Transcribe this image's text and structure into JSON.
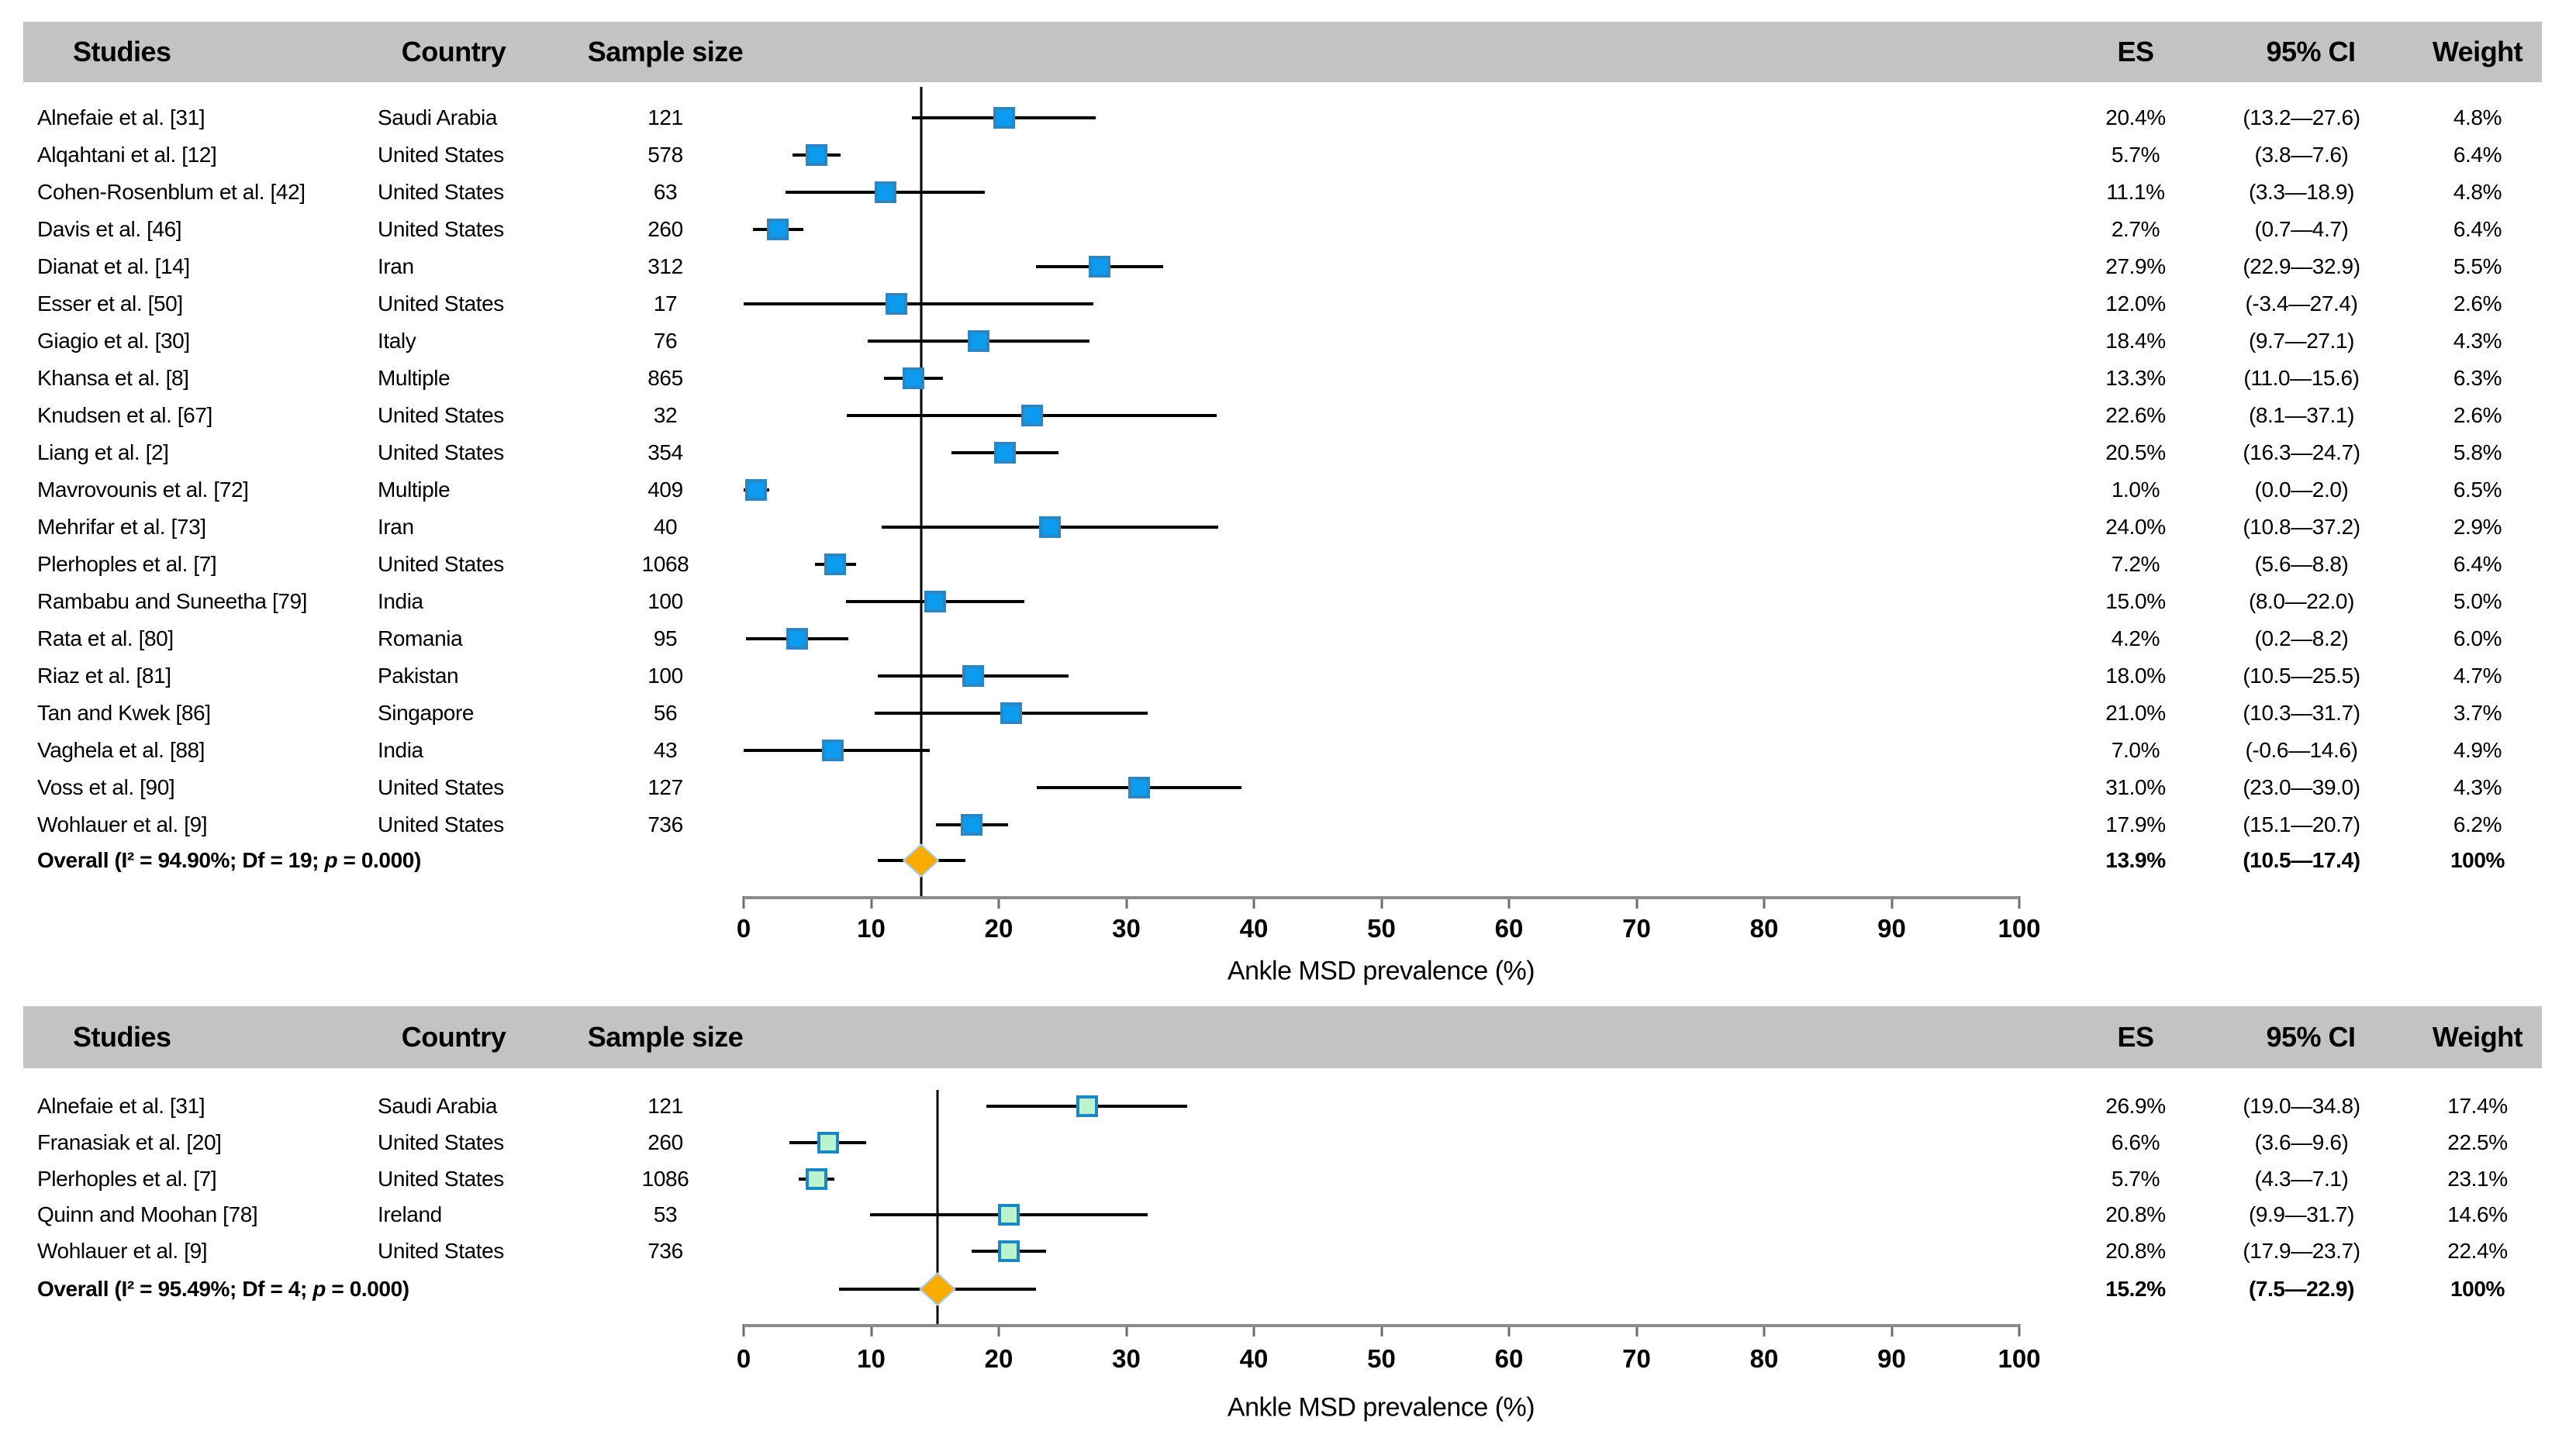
{
  "figure_name": "ankle-msd-prevalence-forest-plots",
  "columns": {
    "studies": "Studies",
    "country": "Country",
    "sample_size": "Sample size",
    "es": "ES",
    "ci": "95% CI",
    "weight": "Weight"
  },
  "colors": {
    "header_bg": "#c3c3c3",
    "panel1_marker_fill": "#0d9bf0",
    "panel1_marker_border": "#2e86c1",
    "panel2_marker_fill": "#b9f4cf",
    "panel2_marker_border": "#1e86c0",
    "diamond_fill": "#f8ab00",
    "diamond_border": "#aecbdd",
    "ci_line": "#000000",
    "axis_line": "#8c8c8c",
    "text": "#000000"
  },
  "chart_data": [
    {
      "type": "forest",
      "xlabel": "Ankle MSD prevalence (%)",
      "xlim": [
        0,
        100
      ],
      "ticks": [
        0,
        10,
        20,
        30,
        40,
        50,
        60,
        70,
        80,
        90,
        100
      ],
      "legend_position": "none",
      "grid": false,
      "marker_fill": "#0d9bf0",
      "marker_border": "#2e86c1",
      "marker_border_px": 4,
      "rows": [
        {
          "study": "Alnefaie et al. [31]",
          "country": "Saudi Arabia",
          "n": "121",
          "es": 20.4,
          "lo": 13.2,
          "hi": 27.6,
          "es_text": "20.4%",
          "ci_text": "(13.2—27.6)",
          "weight_text": "4.8%"
        },
        {
          "study": "Alqahtani et al. [12]",
          "country": "United States",
          "n": "578",
          "es": 5.7,
          "lo": 3.8,
          "hi": 7.6,
          "es_text": "5.7%",
          "ci_text": "(3.8—7.6)",
          "weight_text": "6.4%"
        },
        {
          "study": "Cohen-Rosenblum et al. [42]",
          "country": "United States",
          "n": "63",
          "es": 11.1,
          "lo": 3.3,
          "hi": 18.9,
          "es_text": "11.1%",
          "ci_text": "(3.3—18.9)",
          "weight_text": "4.8%"
        },
        {
          "study": "Davis et al. [46]",
          "country": "United States",
          "n": "260",
          "es": 2.7,
          "lo": 0.7,
          "hi": 4.7,
          "es_text": "2.7%",
          "ci_text": "(0.7—4.7)",
          "weight_text": "6.4%"
        },
        {
          "study": "Dianat et al. [14]",
          "country": "Iran",
          "n": "312",
          "es": 27.9,
          "lo": 22.9,
          "hi": 32.9,
          "es_text": "27.9%",
          "ci_text": "(22.9—32.9)",
          "weight_text": "5.5%"
        },
        {
          "study": "Esser et al. [50]",
          "country": "United States",
          "n": "17",
          "es": 12.0,
          "lo": -3.4,
          "hi": 27.4,
          "es_text": "12.0%",
          "ci_text": "(-3.4—27.4)",
          "weight_text": "2.6%"
        },
        {
          "study": "Giagio et al. [30]",
          "country": "Italy",
          "n": "76",
          "es": 18.4,
          "lo": 9.7,
          "hi": 27.1,
          "es_text": "18.4%",
          "ci_text": "(9.7—27.1)",
          "weight_text": "4.3%"
        },
        {
          "study": "Khansa et al. [8]",
          "country": "Multiple",
          "n": "865",
          "es": 13.3,
          "lo": 11.0,
          "hi": 15.6,
          "es_text": "13.3%",
          "ci_text": "(11.0—15.6)",
          "weight_text": "6.3%"
        },
        {
          "study": "Knudsen et al. [67]",
          "country": "United States",
          "n": "32",
          "es": 22.6,
          "lo": 8.1,
          "hi": 37.1,
          "es_text": "22.6%",
          "ci_text": "(8.1—37.1)",
          "weight_text": "2.6%"
        },
        {
          "study": "Liang et al. [2]",
          "country": "United States",
          "n": "354",
          "es": 20.5,
          "lo": 16.3,
          "hi": 24.7,
          "es_text": "20.5%",
          "ci_text": "(16.3—24.7)",
          "weight_text": "5.8%"
        },
        {
          "study": "Mavrovounis et al. [72]",
          "country": "Multiple",
          "n": "409",
          "es": 1.0,
          "lo": 0.0,
          "hi": 2.0,
          "es_text": "1.0%",
          "ci_text": "(0.0—2.0)",
          "weight_text": "6.5%"
        },
        {
          "study": "Mehrifar et al. [73]",
          "country": "Iran",
          "n": "40",
          "es": 24.0,
          "lo": 10.8,
          "hi": 37.2,
          "es_text": "24.0%",
          "ci_text": "(10.8—37.2)",
          "weight_text": "2.9%"
        },
        {
          "study": "Plerhoples et al. [7]",
          "country": "United States",
          "n": "1068",
          "es": 7.2,
          "lo": 5.6,
          "hi": 8.8,
          "es_text": "7.2%",
          "ci_text": "(5.6—8.8)",
          "weight_text": "6.4%"
        },
        {
          "study": "Rambabu and Suneetha [79]",
          "country": "India",
          "n": "100",
          "es": 15.0,
          "lo": 8.0,
          "hi": 22.0,
          "es_text": "15.0%",
          "ci_text": "(8.0—22.0)",
          "weight_text": "5.0%"
        },
        {
          "study": "Rata et al. [80]",
          "country": "Romania",
          "n": "95",
          "es": 4.2,
          "lo": 0.2,
          "hi": 8.2,
          "es_text": "4.2%",
          "ci_text": "(0.2—8.2)",
          "weight_text": "6.0%"
        },
        {
          "study": "Riaz et al. [81]",
          "country": "Pakistan",
          "n": "100",
          "es": 18.0,
          "lo": 10.5,
          "hi": 25.5,
          "es_text": "18.0%",
          "ci_text": "(10.5—25.5)",
          "weight_text": "4.7%"
        },
        {
          "study": "Tan and Kwek [86]",
          "country": "Singapore",
          "n": "56",
          "es": 21.0,
          "lo": 10.3,
          "hi": 31.7,
          "es_text": "21.0%",
          "ci_text": "(10.3—31.7)",
          "weight_text": "3.7%"
        },
        {
          "study": "Vaghela et al. [88]",
          "country": "India",
          "n": "43",
          "es": 7.0,
          "lo": -0.6,
          "hi": 14.6,
          "es_text": "7.0%",
          "ci_text": "(-0.6—14.6)",
          "weight_text": "4.9%"
        },
        {
          "study": "Voss et al. [90]",
          "country": "United States",
          "n": "127",
          "es": 31.0,
          "lo": 23.0,
          "hi": 39.0,
          "es_text": "31.0%",
          "ci_text": "(23.0—39.0)",
          "weight_text": "4.3%"
        },
        {
          "study": "Wohlauer et al. [9]",
          "country": "United States",
          "n": "736",
          "es": 17.9,
          "lo": 15.1,
          "hi": 20.7,
          "es_text": "17.9%",
          "ci_text": "(15.1—20.7)",
          "weight_text": "6.2%"
        }
      ],
      "overall_prefix": "Overall (I² = 94.90%; Df = 19; ",
      "overall_p": "p",
      "overall_suffix": " = 0.000)",
      "overall": {
        "es": 13.9,
        "lo": 10.5,
        "hi": 17.4,
        "es_text": "13.9%",
        "ci_text": "(10.5—17.4)",
        "weight_text": "100%"
      }
    },
    {
      "type": "forest",
      "xlabel": "Ankle MSD prevalence (%)",
      "xlim": [
        0,
        100
      ],
      "ticks": [
        0,
        10,
        20,
        30,
        40,
        50,
        60,
        70,
        80,
        90,
        100
      ],
      "legend_position": "none",
      "grid": false,
      "marker_fill": "#b9f4cf",
      "marker_border": "#1e86c0",
      "marker_border_px": 4,
      "rows": [
        {
          "study": "Alnefaie et al. [31]",
          "country": "Saudi Arabia",
          "n": "121",
          "es": 26.9,
          "lo": 19.0,
          "hi": 34.8,
          "es_text": "26.9%",
          "ci_text": "(19.0—34.8)",
          "weight_text": "17.4%"
        },
        {
          "study": "Franasiak et al. [20]",
          "country": "United States",
          "n": "260",
          "es": 6.6,
          "lo": 3.6,
          "hi": 9.6,
          "es_text": "6.6%",
          "ci_text": "(3.6—9.6)",
          "weight_text": "22.5%"
        },
        {
          "study": "Plerhoples et al. [7]",
          "country": "United States",
          "n": "1086",
          "es": 5.7,
          "lo": 4.3,
          "hi": 7.1,
          "es_text": "5.7%",
          "ci_text": "(4.3—7.1)",
          "weight_text": "23.1%"
        },
        {
          "study": "Quinn and Moohan [78]",
          "country": "Ireland",
          "n": "53",
          "es": 20.8,
          "lo": 9.9,
          "hi": 31.7,
          "es_text": "20.8%",
          "ci_text": "(9.9—31.7)",
          "weight_text": "14.6%"
        },
        {
          "study": "Wohlauer et al. [9]",
          "country": "United States",
          "n": "736",
          "es": 20.8,
          "lo": 17.9,
          "hi": 23.7,
          "es_text": "20.8%",
          "ci_text": "(17.9—23.7)",
          "weight_text": "22.4%"
        }
      ],
      "overall_prefix": "Overall (I² = 95.49%; Df = 4; ",
      "overall_p": "p",
      "overall_suffix": " = 0.000)",
      "overall": {
        "es": 15.2,
        "lo": 7.5,
        "hi": 22.9,
        "es_text": "15.2%",
        "ci_text": "(7.5—22.9)",
        "weight_text": "100%"
      }
    }
  ]
}
